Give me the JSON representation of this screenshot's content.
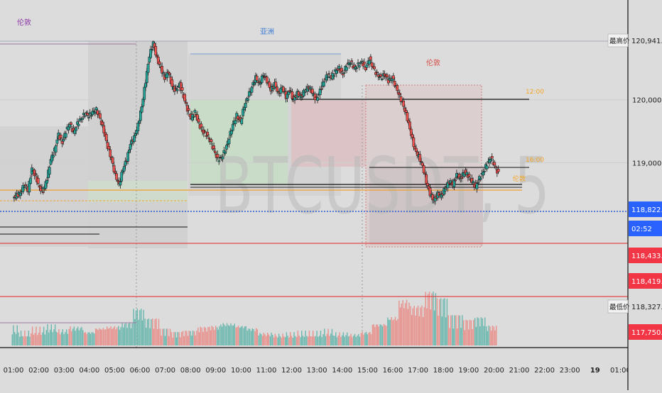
{
  "chart_data": {
    "type": "candlestick",
    "symbol": "BTCUSDT",
    "interval": "5",
    "watermark": "BTCUSDT, 5",
    "x_ticks": [
      "01:00",
      "02:00",
      "03:00",
      "04:00",
      "05:00",
      "06:00",
      "07:00",
      "08:00",
      "09:00",
      "10:00",
      "11:00",
      "12:00",
      "13:00",
      "14:00",
      "15:00",
      "16:00",
      "17:00",
      "18:00",
      "19:00",
      "20:00",
      "21:00",
      "22:00",
      "23:00",
      "19",
      "01:00"
    ],
    "y_ticks": [
      119000.0,
      120000.0
    ],
    "y_tick_labels": [
      "119,000.0",
      "120,000.0"
    ],
    "y_range": [
      117700,
      121100
    ],
    "price_labels": [
      {
        "label": "最高价",
        "value": "120,941.8",
        "price": 120941.8,
        "style": "plain"
      },
      {
        "label": "",
        "value": "118,822.0",
        "price": 118822.0,
        "style": "blue"
      },
      {
        "label": "",
        "value": "02:52",
        "style": "blue"
      },
      {
        "label": "",
        "value": "118,433.8",
        "price": 118433.8,
        "style": "red"
      },
      {
        "label": "",
        "value": "118,419.9",
        "price": 118419.9,
        "style": "red"
      },
      {
        "label": "最低价",
        "value": "118,327.7",
        "price": 118327.7,
        "style": "plain"
      },
      {
        "label": "",
        "value": "117,750.0",
        "price": 117750.0,
        "style": "red"
      }
    ],
    "session_labels": [
      {
        "text": "伦敦",
        "color": "#8e3aa7"
      },
      {
        "text": "亚洲",
        "color": "#3a7bd5"
      },
      {
        "text": "伦敦",
        "color": "#d4504b"
      }
    ],
    "level_labels": [
      {
        "text": "12:00",
        "color": "#f5a623"
      },
      {
        "text": "16:00",
        "color": "#f5a623"
      },
      {
        "text": "伦敦",
        "color": "#f5a623"
      }
    ],
    "close_path": [
      [
        0.0,
        118480
      ],
      [
        0.15,
        118520
      ],
      [
        0.3,
        118650
      ],
      [
        0.45,
        118560
      ],
      [
        0.6,
        118900
      ],
      [
        0.75,
        118780
      ],
      [
        0.9,
        118600
      ],
      [
        1.05,
        118550
      ],
      [
        1.2,
        118750
      ],
      [
        1.35,
        119050
      ],
      [
        1.5,
        119200
      ],
      [
        1.65,
        119450
      ],
      [
        1.8,
        119320
      ],
      [
        1.95,
        119500
      ],
      [
        2.1,
        119620
      ],
      [
        2.25,
        119480
      ],
      [
        2.4,
        119620
      ],
      [
        2.55,
        119700
      ],
      [
        2.7,
        119780
      ],
      [
        2.85,
        119740
      ],
      [
        3.0,
        119800
      ],
      [
        3.15,
        119840
      ],
      [
        3.3,
        119700
      ],
      [
        3.45,
        119500
      ],
      [
        3.6,
        119250
      ],
      [
        3.75,
        119050
      ],
      [
        3.9,
        118800
      ],
      [
        4.05,
        118650
      ],
      [
        4.2,
        118900
      ],
      [
        4.35,
        119050
      ],
      [
        4.5,
        119300
      ],
      [
        4.65,
        119400
      ],
      [
        4.8,
        119600
      ],
      [
        4.95,
        119900
      ],
      [
        5.1,
        120300
      ],
      [
        5.25,
        120700
      ],
      [
        5.4,
        120900
      ],
      [
        5.55,
        120650
      ],
      [
        5.7,
        120500
      ],
      [
        5.85,
        120350
      ],
      [
        6.0,
        120450
      ],
      [
        6.15,
        120200
      ],
      [
        6.3,
        120150
      ],
      [
        6.45,
        120250
      ],
      [
        6.6,
        120050
      ],
      [
        6.75,
        119850
      ],
      [
        6.9,
        119700
      ],
      [
        7.05,
        119800
      ],
      [
        7.2,
        119620
      ],
      [
        7.35,
        119500
      ],
      [
        7.5,
        119450
      ],
      [
        7.65,
        119350
      ],
      [
        7.8,
        119200
      ],
      [
        7.95,
        119050
      ],
      [
        8.1,
        119080
      ],
      [
        8.25,
        119200
      ],
      [
        8.4,
        119400
      ],
      [
        8.55,
        119600
      ],
      [
        8.7,
        119750
      ],
      [
        8.85,
        119650
      ],
      [
        9.0,
        119900
      ],
      [
        9.15,
        120050
      ],
      [
        9.3,
        120200
      ],
      [
        9.45,
        120350
      ],
      [
        9.6,
        120250
      ],
      [
        9.75,
        120400
      ],
      [
        9.9,
        120300
      ],
      [
        10.05,
        120150
      ],
      [
        10.2,
        120250
      ],
      [
        10.35,
        120100
      ],
      [
        10.5,
        120200
      ],
      [
        10.65,
        120050
      ],
      [
        10.8,
        120150
      ],
      [
        10.95,
        120000
      ],
      [
        11.1,
        120100
      ],
      [
        11.25,
        120050
      ],
      [
        11.4,
        120150
      ],
      [
        11.55,
        120200
      ],
      [
        11.7,
        120100
      ],
      [
        11.85,
        120000
      ],
      [
        12.0,
        120150
      ],
      [
        12.15,
        120300
      ],
      [
        12.3,
        120400
      ],
      [
        12.45,
        120350
      ],
      [
        12.6,
        120450
      ],
      [
        12.75,
        120500
      ],
      [
        12.9,
        120400
      ],
      [
        13.05,
        120550
      ],
      [
        13.2,
        120600
      ],
      [
        13.35,
        120500
      ],
      [
        13.5,
        120550
      ],
      [
        13.65,
        120600
      ],
      [
        13.8,
        120500
      ],
      [
        13.95,
        120650
      ],
      [
        14.1,
        120500
      ],
      [
        14.25,
        120400
      ],
      [
        14.4,
        120350
      ],
      [
        14.55,
        120400
      ],
      [
        14.7,
        120300
      ],
      [
        14.85,
        120350
      ],
      [
        15.0,
        120200
      ],
      [
        15.15,
        120050
      ],
      [
        15.3,
        119900
      ],
      [
        15.45,
        119700
      ],
      [
        15.6,
        119450
      ],
      [
        15.75,
        119200
      ],
      [
        15.9,
        119100
      ],
      [
        16.05,
        118950
      ],
      [
        16.2,
        118700
      ],
      [
        16.35,
        118500
      ],
      [
        16.5,
        118400
      ],
      [
        16.65,
        118500
      ],
      [
        16.8,
        118480
      ],
      [
        16.95,
        118600
      ],
      [
        17.1,
        118700
      ],
      [
        17.25,
        118650
      ],
      [
        17.4,
        118800
      ],
      [
        17.55,
        118750
      ],
      [
        17.7,
        118850
      ],
      [
        17.85,
        118800
      ],
      [
        18.0,
        118700
      ],
      [
        18.15,
        118620
      ],
      [
        18.3,
        118750
      ],
      [
        18.45,
        118850
      ],
      [
        18.6,
        118980
      ],
      [
        18.75,
        119080
      ],
      [
        18.9,
        118950
      ],
      [
        19.05,
        118822
      ]
    ],
    "volume_profile": [
      [
        0,
        0.3
      ],
      [
        0.5,
        0.22
      ],
      [
        1,
        0.28
      ],
      [
        1.5,
        0.32
      ],
      [
        2,
        0.25
      ],
      [
        2.5,
        0.3
      ],
      [
        3,
        0.22
      ],
      [
        3.5,
        0.28
      ],
      [
        4,
        0.3
      ],
      [
        4.5,
        0.35
      ],
      [
        5,
        0.55
      ],
      [
        5.5,
        0.4
      ],
      [
        6,
        0.25
      ],
      [
        6.5,
        0.2
      ],
      [
        7,
        0.22
      ],
      [
        7.5,
        0.28
      ],
      [
        8,
        0.3
      ],
      [
        8.5,
        0.35
      ],
      [
        9,
        0.32
      ],
      [
        9.5,
        0.28
      ],
      [
        10,
        0.2
      ],
      [
        10.5,
        0.18
      ],
      [
        11,
        0.2
      ],
      [
        11.5,
        0.22
      ],
      [
        12,
        0.22
      ],
      [
        12.5,
        0.25
      ],
      [
        13,
        0.2
      ],
      [
        13.5,
        0.18
      ],
      [
        14,
        0.22
      ],
      [
        14.5,
        0.35
      ],
      [
        15,
        0.45
      ],
      [
        15.5,
        0.7
      ],
      [
        16,
        0.6
      ],
      [
        16.5,
        0.8
      ],
      [
        17,
        0.7
      ],
      [
        17.5,
        0.45
      ],
      [
        18,
        0.38
      ],
      [
        18.5,
        0.42
      ],
      [
        19,
        0.3
      ]
    ]
  }
}
